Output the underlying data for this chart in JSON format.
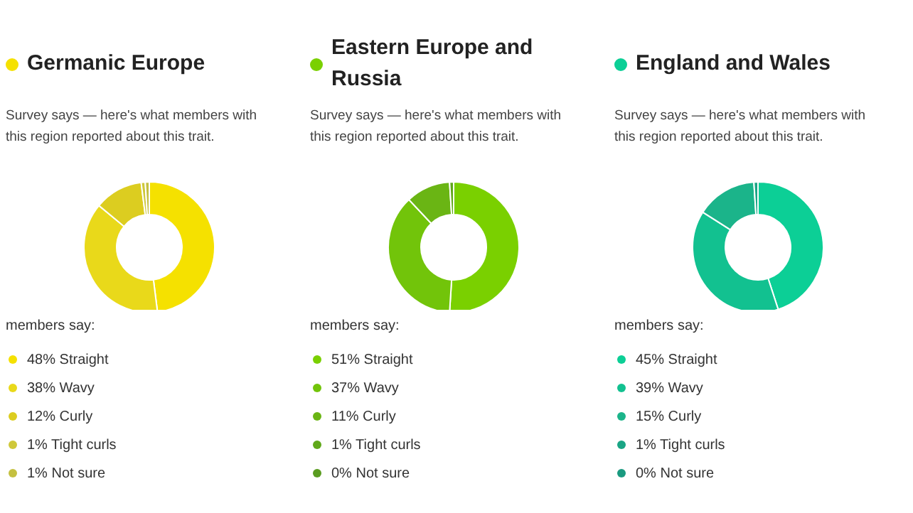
{
  "chart_data": [
    {
      "type": "donut",
      "title": "Germanic Europe",
      "subtitle": "Survey says — here's what members with this region reported about this trait.",
      "annotations": [
        "members say:"
      ],
      "categories": [
        "Straight",
        "Wavy",
        "Curly",
        "Tight curls",
        "Not sure"
      ],
      "values": [
        48,
        38,
        12,
        1,
        1
      ],
      "value_labels": [
        "48%",
        "38%",
        "12%",
        "1%",
        "1%"
      ],
      "colors": [
        "#f5e100",
        "#e9d91a",
        "#dccd20",
        "#cfc83a",
        "#c4c040"
      ],
      "legend": "bottom"
    },
    {
      "type": "donut",
      "title": "Eastern Europe and Russia",
      "subtitle": "Survey says — here's what members with this region reported about this trait.",
      "annotations": [
        "members say:"
      ],
      "categories": [
        "Straight",
        "Wavy",
        "Curly",
        "Tight curls",
        "Not sure"
      ],
      "values": [
        51,
        37,
        11,
        1,
        0
      ],
      "value_labels": [
        "51%",
        "37%",
        "11%",
        "1%",
        "0%"
      ],
      "colors": [
        "#7ad000",
        "#72c40a",
        "#6ab514",
        "#60a81a",
        "#5a9c20"
      ],
      "legend": "bottom"
    },
    {
      "type": "donut",
      "title": "England and Wales",
      "subtitle": "Survey says — here's what members with this region reported about this trait.",
      "annotations": [
        "members say:"
      ],
      "categories": [
        "Straight",
        "Wavy",
        "Curly",
        "Tight curls",
        "Not sure"
      ],
      "values": [
        45,
        39,
        15,
        1,
        0
      ],
      "value_labels": [
        "45%",
        "39%",
        "15%",
        "1%",
        "0%"
      ],
      "colors": [
        "#0ccf96",
        "#12c190",
        "#1bb48a",
        "#1aa585",
        "#1a9a80"
      ],
      "legend": "bottom"
    }
  ]
}
